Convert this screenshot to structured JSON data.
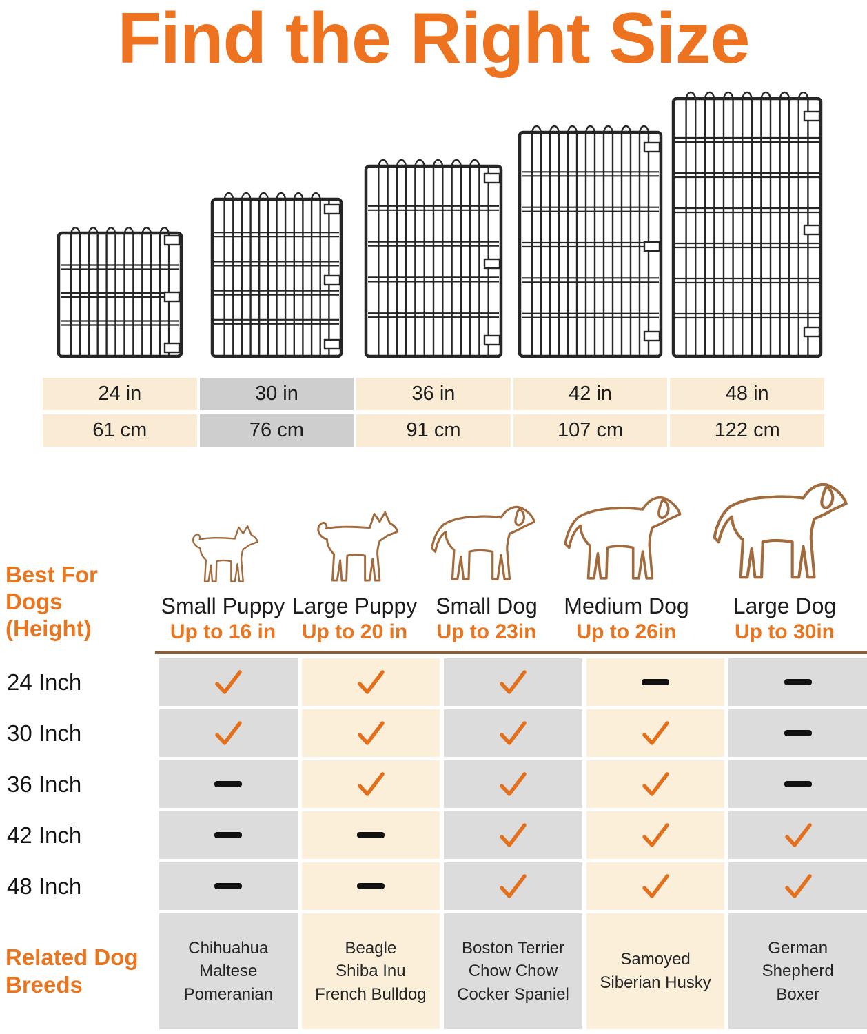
{
  "title": "Find the Right Size",
  "size_options": [
    {
      "inches": 24,
      "inch_label": "24 in",
      "cm_label": "61 cm",
      "highlighted": false
    },
    {
      "inches": 30,
      "inch_label": "30 in",
      "cm_label": "76 cm",
      "highlighted": true
    },
    {
      "inches": 36,
      "inch_label": "36 in",
      "cm_label": "91 cm",
      "highlighted": false
    },
    {
      "inches": 42,
      "inch_label": "42 in",
      "cm_label": "107 cm",
      "highlighted": false
    },
    {
      "inches": 48,
      "inch_label": "48 in",
      "cm_label": "122 cm",
      "highlighted": false
    }
  ],
  "fit_table": {
    "row_header_line1": "Best For Dogs",
    "row_header_line2": "(Height)",
    "columns": [
      {
        "name": "Small Puppy",
        "max_height": "Up to 16 in",
        "max_in": 16,
        "icon": "small-puppy-outline-icon",
        "shade": "gray",
        "dog_variant": "puppy"
      },
      {
        "name": "Large Puppy",
        "max_height": "Up to 20 in",
        "max_in": 20,
        "icon": "large-puppy-outline-icon",
        "shade": "cream",
        "dog_variant": "puppy"
      },
      {
        "name": "Small Dog",
        "max_height": "Up to 23in",
        "max_in": 23,
        "icon": "small-dog-outline-icon",
        "shade": "gray",
        "dog_variant": "dog"
      },
      {
        "name": "Medium Dog",
        "max_height": "Up to 26in",
        "max_in": 26,
        "icon": "medium-dog-outline-icon",
        "shade": "cream",
        "dog_variant": "dog"
      },
      {
        "name": "Large Dog",
        "max_height": "Up to 30in",
        "max_in": 30,
        "icon": "large-dog-outline-icon",
        "shade": "gray",
        "dog_variant": "dog"
      }
    ],
    "rows": [
      {
        "label": "24 Inch",
        "fits": [
          "check",
          "check",
          "check",
          "dash",
          "dash"
        ]
      },
      {
        "label": "30 Inch",
        "fits": [
          "check",
          "check",
          "check",
          "check",
          "dash"
        ]
      },
      {
        "label": "36 Inch",
        "fits": [
          "dash",
          "check",
          "check",
          "check",
          "dash"
        ]
      },
      {
        "label": "42 Inch",
        "fits": [
          "dash",
          "dash",
          "check",
          "check",
          "check"
        ]
      },
      {
        "label": "48 Inch",
        "fits": [
          "dash",
          "dash",
          "check",
          "check",
          "check"
        ]
      }
    ],
    "breeds_header_line1": "Related Dog",
    "breeds_header_line2": "Breeds",
    "breeds": [
      [
        "Chihuahua",
        "Maltese",
        "Pomeranian"
      ],
      [
        "Beagle",
        "Shiba Inu",
        "French Bulldog"
      ],
      [
        "Boston Terrier",
        "Chow Chow",
        "Cocker Spaniel"
      ],
      [
        "Samoyed",
        "Siberian Husky"
      ],
      [
        "German",
        "Shepherd",
        "Boxer"
      ]
    ]
  },
  "colors": {
    "title_orange": "#ED7320",
    "accent_orange": "#E87620",
    "check_orange": "#E2701D",
    "rule_brown": "#8A5F3D",
    "dog_outline_brown": "#A26B3D",
    "cell_cream": "#FCEFDA",
    "cell_gray": "#DCDCDC",
    "size_cell_cream": "#FAECD4",
    "size_cell_highlight_gray": "#CECECE",
    "wire_black": "#262626",
    "dash_black": "#111111"
  }
}
